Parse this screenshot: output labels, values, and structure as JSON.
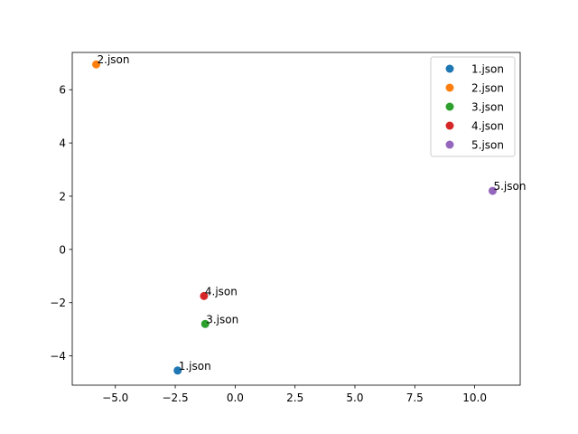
{
  "chart_data": {
    "type": "scatter",
    "title": "",
    "xlabel": "",
    "ylabel": "",
    "xlim": [
      -6.8,
      11.9
    ],
    "ylim": [
      -5.1,
      7.4
    ],
    "xticks": [
      -5.0,
      -2.5,
      0.0,
      2.5,
      5.0,
      7.5,
      10.0
    ],
    "xtick_labels": [
      "−5.0",
      "−2.5",
      "0.0",
      "2.5",
      "5.0",
      "7.5",
      "10.0"
    ],
    "yticks": [
      -4,
      -2,
      0,
      2,
      4,
      6
    ],
    "ytick_labels": [
      "−4",
      "−2",
      "0",
      "2",
      "4",
      "6"
    ],
    "grid": false,
    "legend_position": "top-right",
    "series": [
      {
        "name": "1.json",
        "color": "#1f77b4",
        "x": -2.4,
        "y": -4.55
      },
      {
        "name": "2.json",
        "color": "#ff7f0e",
        "x": -5.8,
        "y": 6.95
      },
      {
        "name": "3.json",
        "color": "#2ca02c",
        "x": -1.25,
        "y": -2.8
      },
      {
        "name": "4.json",
        "color": "#d62728",
        "x": -1.3,
        "y": -1.75
      },
      {
        "name": "5.json",
        "color": "#9467bd",
        "x": 10.75,
        "y": 2.2
      }
    ]
  }
}
